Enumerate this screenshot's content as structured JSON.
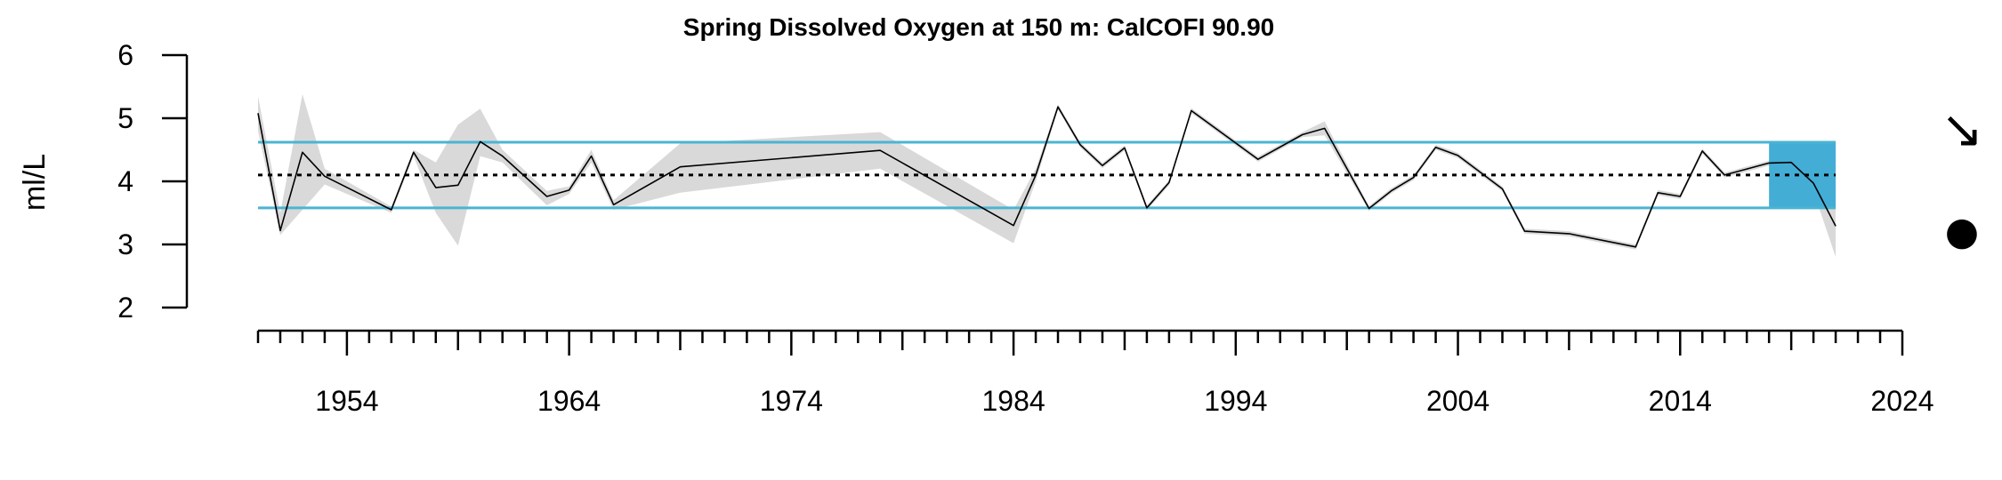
{
  "chart_data": {
    "type": "line",
    "title": "Spring Dissolved Oxygen at 150 m: CalCOFI 90.90",
    "xlabel": "",
    "ylabel": "ml/L",
    "xlim": [
      1950,
      2024
    ],
    "ylim": [
      2,
      6
    ],
    "x_ticks": [
      1954,
      1964,
      1974,
      1984,
      1994,
      2004,
      2014,
      2024
    ],
    "y_ticks": [
      2,
      3,
      4,
      5,
      6
    ],
    "grid": false,
    "series": [
      {
        "values": [
          [
            1950,
            5.08
          ],
          [
            1951,
            3.22
          ],
          [
            1952,
            4.46
          ],
          [
            1953,
            4.08
          ],
          [
            1956,
            3.55
          ],
          [
            1957,
            4.46
          ],
          [
            1958,
            3.9
          ],
          [
            1959,
            3.94
          ],
          [
            1960,
            4.63
          ],
          [
            1961,
            4.4
          ],
          [
            1963,
            3.76
          ],
          [
            1964,
            3.86
          ],
          [
            1965,
            4.4
          ],
          [
            1966,
            3.63
          ],
          [
            1969,
            4.23
          ],
          [
            1978,
            4.49
          ],
          [
            1984,
            3.3
          ],
          [
            1985,
            4.1
          ],
          [
            1986,
            5.18
          ],
          [
            1987,
            4.58
          ],
          [
            1988,
            4.25
          ],
          [
            1989,
            4.53
          ],
          [
            1990,
            3.58
          ],
          [
            1991,
            3.98
          ],
          [
            1992,
            5.12
          ],
          [
            1995,
            4.35
          ],
          [
            1997,
            4.74
          ],
          [
            1998,
            4.84
          ],
          [
            2000,
            3.57
          ],
          [
            2001,
            3.85
          ],
          [
            2002,
            4.06
          ],
          [
            2003,
            4.54
          ],
          [
            2004,
            4.41
          ],
          [
            2006,
            3.88
          ],
          [
            2007,
            3.21
          ],
          [
            2009,
            3.17
          ],
          [
            2012,
            2.96
          ],
          [
            2013,
            3.82
          ],
          [
            2014,
            3.76
          ],
          [
            2015,
            4.48
          ],
          [
            2016,
            4.1
          ],
          [
            2018,
            4.29
          ],
          [
            2019,
            4.3
          ],
          [
            2020,
            3.97
          ],
          [
            2021,
            3.29
          ]
        ]
      }
    ],
    "uncertainty_band": [
      [
        1950,
        5.35,
        4.8
      ],
      [
        1951,
        3.5,
        3.15
      ],
      [
        1952,
        5.38,
        3.55
      ],
      [
        1953,
        4.2,
        3.95
      ],
      [
        1956,
        3.6,
        3.5
      ],
      [
        1957,
        4.5,
        4.4
      ],
      [
        1958,
        4.3,
        3.5
      ],
      [
        1959,
        4.9,
        2.98
      ],
      [
        1960,
        5.15,
        4.4
      ],
      [
        1961,
        4.5,
        4.3
      ],
      [
        1963,
        3.85,
        3.62
      ],
      [
        1964,
        3.92,
        3.8
      ],
      [
        1965,
        4.5,
        4.3
      ],
      [
        1966,
        3.7,
        3.55
      ],
      [
        1969,
        4.6,
        3.82
      ],
      [
        1978,
        4.78,
        4.2
      ],
      [
        1984,
        3.55,
        3.02
      ],
      [
        1985,
        4.2,
        4.0
      ],
      [
        1986,
        5.22,
        5.14
      ],
      [
        1987,
        4.62,
        4.54
      ],
      [
        1988,
        4.29,
        4.21
      ],
      [
        1989,
        4.57,
        4.49
      ],
      [
        1990,
        3.62,
        3.54
      ],
      [
        1991,
        4.02,
        3.94
      ],
      [
        1992,
        5.16,
        5.08
      ],
      [
        1995,
        4.39,
        4.31
      ],
      [
        1997,
        4.78,
        4.7
      ],
      [
        1998,
        4.95,
        4.73
      ],
      [
        2000,
        3.61,
        3.53
      ],
      [
        2001,
        3.89,
        3.81
      ],
      [
        2002,
        4.1,
        4.02
      ],
      [
        2003,
        4.58,
        4.5
      ],
      [
        2004,
        4.45,
        4.37
      ],
      [
        2006,
        3.92,
        3.84
      ],
      [
        2007,
        3.25,
        3.17
      ],
      [
        2009,
        3.21,
        3.13
      ],
      [
        2012,
        3.0,
        2.92
      ],
      [
        2013,
        3.86,
        3.78
      ],
      [
        2014,
        3.8,
        3.72
      ],
      [
        2015,
        4.52,
        4.44
      ],
      [
        2016,
        4.14,
        4.06
      ],
      [
        2018,
        4.33,
        4.25
      ],
      [
        2019,
        4.34,
        4.26
      ],
      [
        2020,
        4.1,
        3.84
      ],
      [
        2021,
        3.72,
        2.8
      ]
    ],
    "mean": 4.1,
    "upper_sd": 4.62,
    "lower_sd": 3.58,
    "highlight_period": [
      2018,
      2021
    ],
    "trend_symbol": "↘",
    "mean_symbol": "●",
    "colors": {
      "line": "#000000",
      "band": "#d9d9d9",
      "sd_lines": "#4bb4d2",
      "highlight": "#43add6",
      "mean_line": "#000000"
    }
  }
}
